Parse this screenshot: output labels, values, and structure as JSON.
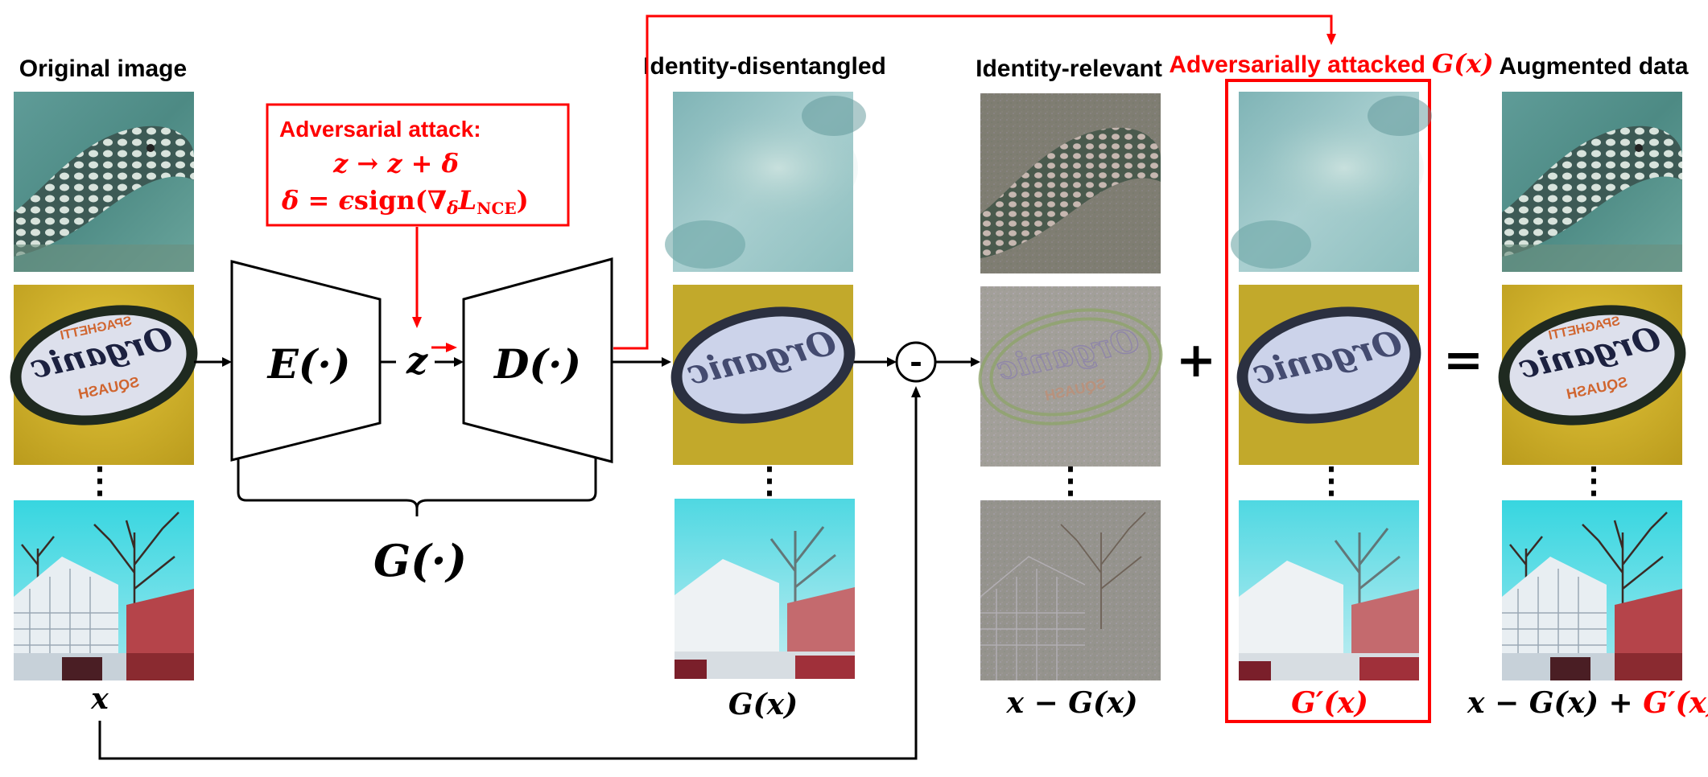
{
  "headers": {
    "original": "Original image",
    "disentangled": "Identity-disentangled",
    "relevant": "Identity-relevant",
    "attacked_prefix": "Adversarially attacked",
    "attacked_math": "G(x)",
    "augmented": "Augmented data"
  },
  "attack_box": {
    "title": "Adversarial attack:",
    "eq1": "z → z + δ",
    "eq2_lhs": "δ = ",
    "eq2_eps": "ϵ",
    "eq2_sign": "sign(",
    "eq2_nabla": "∇",
    "eq2_sub": "δ",
    "eq2_L": "L",
    "eq2_Lsub": "NCE",
    "eq2_close": ")"
  },
  "network": {
    "encoder": "E(·)",
    "decoder": "D(·)",
    "latent": "z",
    "generator": "G(·)"
  },
  "operators": {
    "minus": "-",
    "plus": "+",
    "equals": "="
  },
  "dots": "⋮",
  "captions": {
    "x": "x",
    "gx": "G(x)",
    "x_minus_gx": "x − G(x)",
    "g_prime_x": "G′(x)",
    "aug_black": "x − G(x) + ",
    "aug_red": "G′(x)"
  },
  "images": {
    "rows": [
      "moray-eel-image",
      "organic-squash-sticker-image",
      "greenhouse-trees-image"
    ]
  }
}
